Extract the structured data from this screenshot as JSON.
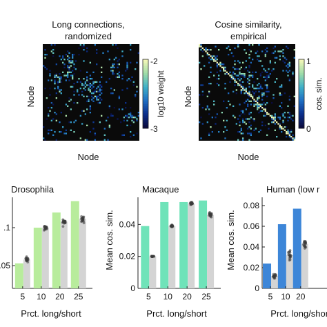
{
  "colors": {
    "matrix_bg": "#0a0a0a",
    "colormap": [
      "#0a0a3c",
      "#0b2f8c",
      "#1f6fc4",
      "#3fb0c8",
      "#9fdca8",
      "#f4f7b8"
    ],
    "drosophila_bar": "#b8ec9c",
    "macaque_bar": "#6fe3b9",
    "human_bar": "#3d86d8",
    "null_bar": "#d4d4d4",
    "null_points": "#3a3a3a"
  },
  "left_edge_fragments": [
    "o",
    "o"
  ],
  "chart_data": [
    {
      "type": "heatmap",
      "title": "Long connections,\nrandomized",
      "xlabel": "Node",
      "ylabel": "Node",
      "colorbar_label": "log10 weight",
      "colorbar_ticks": [
        "-2",
        "-3"
      ],
      "clim": [
        -3,
        -2
      ],
      "density": 0.16,
      "seed": 11,
      "diagonal": false
    },
    {
      "type": "heatmap",
      "title": "Cosine similarity,\nempirical",
      "xlabel": "Node",
      "ylabel": "Node",
      "colorbar_label": "cos. sim.",
      "colorbar_ticks": [
        "1",
        "0"
      ],
      "clim": [
        0,
        1
      ],
      "density": 0.14,
      "seed": 23,
      "diagonal": true
    },
    {
      "type": "bar",
      "title": "Drosophila",
      "xlabel": "Prct. long/short",
      "ylabel": "",
      "categories": [
        "5",
        "10",
        "20",
        "25"
      ],
      "ylim": [
        0.02,
        0.14
      ],
      "yticks": [
        0.05,
        0.1
      ],
      "ytick_labels": [
        ".05",
        ".1"
      ],
      "series": [
        {
          "values": [
            0.053,
            0.1,
            0.12,
            0.135
          ]
        },
        {
          "values": [
            0.058,
            0.1,
            0.108,
            0.112
          ]
        }
      ],
      "null_spread": [
        0.005,
        0.006,
        0.007,
        0.007
      ]
    },
    {
      "type": "bar",
      "title": "Macaque",
      "xlabel": "Prct. long/short",
      "ylabel": "Mean cos. sim.",
      "categories": [
        "5",
        "10",
        "20",
        "25"
      ],
      "ylim": [
        0,
        0.057
      ],
      "yticks": [
        0,
        0.02,
        0.04
      ],
      "ytick_labels": [
        "0",
        "0.02",
        "0.04"
      ],
      "series": [
        {
          "values": [
            0.039,
            0.054,
            0.054,
            0.055
          ]
        },
        {
          "values": [
            0.02,
            0.039,
            0.053,
            0.046
          ]
        }
      ],
      "null_spread": [
        0.0004,
        0.0012,
        0.0014,
        0.0022
      ]
    },
    {
      "type": "bar",
      "title": "Human (low r",
      "xlabel": "Prct. long/short",
      "ylabel": "Mean cos. sim.",
      "categories": [
        "5",
        "10",
        "20"
      ],
      "ylim": [
        0,
        0.088
      ],
      "yticks": [
        0,
        0.02,
        0.04,
        0.06,
        0.08
      ],
      "ytick_labels": [
        "0",
        "0.02",
        "0.04",
        "0.06",
        "0.08"
      ],
      "series": [
        {
          "values": [
            0.024,
            0.062,
            0.077
          ]
        },
        {
          "values": [
            0.012,
            0.032,
            0.043
          ]
        }
      ],
      "null_spread": [
        0.003,
        0.007,
        0.008
      ]
    }
  ]
}
